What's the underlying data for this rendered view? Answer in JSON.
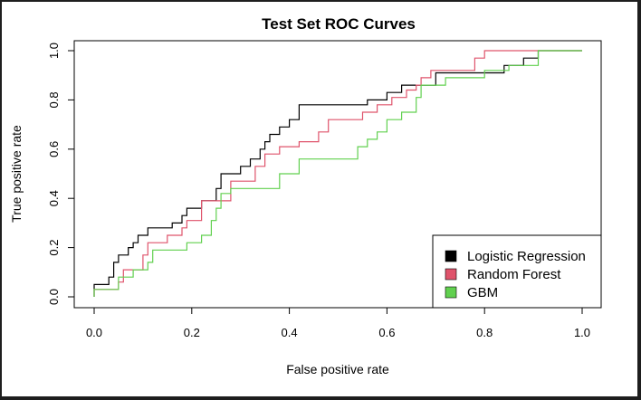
{
  "chart_data": {
    "type": "line",
    "title": "Test Set ROC Curves",
    "xlabel": "False positive rate",
    "ylabel": "True positive rate",
    "xlim": [
      0,
      1
    ],
    "ylim": [
      0,
      1
    ],
    "xticks": [
      "0.0",
      "0.2",
      "0.4",
      "0.6",
      "0.8",
      "1.0"
    ],
    "yticks": [
      "0.0",
      "0.2",
      "0.4",
      "0.6",
      "0.8",
      "1.0"
    ],
    "grid": false,
    "legend_position": "bottom-right",
    "series": [
      {
        "name": "Logistic Regression",
        "color": "#000000",
        "points": [
          [
            0,
            0
          ],
          [
            0,
            0.05
          ],
          [
            0.03,
            0.05
          ],
          [
            0.03,
            0.08
          ],
          [
            0.04,
            0.08
          ],
          [
            0.04,
            0.14
          ],
          [
            0.05,
            0.14
          ],
          [
            0.05,
            0.17
          ],
          [
            0.07,
            0.17
          ],
          [
            0.07,
            0.2
          ],
          [
            0.08,
            0.2
          ],
          [
            0.08,
            0.22
          ],
          [
            0.09,
            0.22
          ],
          [
            0.09,
            0.25
          ],
          [
            0.11,
            0.25
          ],
          [
            0.11,
            0.28
          ],
          [
            0.16,
            0.28
          ],
          [
            0.16,
            0.3
          ],
          [
            0.18,
            0.3
          ],
          [
            0.18,
            0.33
          ],
          [
            0.19,
            0.33
          ],
          [
            0.19,
            0.36
          ],
          [
            0.22,
            0.36
          ],
          [
            0.22,
            0.39
          ],
          [
            0.25,
            0.39
          ],
          [
            0.25,
            0.44
          ],
          [
            0.26,
            0.44
          ],
          [
            0.26,
            0.5
          ],
          [
            0.3,
            0.5
          ],
          [
            0.3,
            0.53
          ],
          [
            0.32,
            0.53
          ],
          [
            0.32,
            0.56
          ],
          [
            0.34,
            0.56
          ],
          [
            0.34,
            0.6
          ],
          [
            0.35,
            0.6
          ],
          [
            0.35,
            0.63
          ],
          [
            0.36,
            0.63
          ],
          [
            0.36,
            0.66
          ],
          [
            0.38,
            0.66
          ],
          [
            0.38,
            0.69
          ],
          [
            0.4,
            0.69
          ],
          [
            0.4,
            0.72
          ],
          [
            0.42,
            0.72
          ],
          [
            0.42,
            0.78
          ],
          [
            0.56,
            0.78
          ],
          [
            0.56,
            0.8
          ],
          [
            0.6,
            0.8
          ],
          [
            0.6,
            0.83
          ],
          [
            0.63,
            0.83
          ],
          [
            0.63,
            0.86
          ],
          [
            0.7,
            0.86
          ],
          [
            0.7,
            0.91
          ],
          [
            0.84,
            0.91
          ],
          [
            0.84,
            0.94
          ],
          [
            0.88,
            0.94
          ],
          [
            0.88,
            0.97
          ],
          [
            0.91,
            0.97
          ],
          [
            0.91,
            1
          ],
          [
            1,
            1
          ]
        ]
      },
      {
        "name": "Random Forest",
        "color": "#df536b",
        "points": [
          [
            0,
            0
          ],
          [
            0,
            0.03
          ],
          [
            0.05,
            0.03
          ],
          [
            0.05,
            0.06
          ],
          [
            0.06,
            0.06
          ],
          [
            0.06,
            0.11
          ],
          [
            0.1,
            0.11
          ],
          [
            0.1,
            0.17
          ],
          [
            0.11,
            0.17
          ],
          [
            0.11,
            0.22
          ],
          [
            0.15,
            0.22
          ],
          [
            0.15,
            0.25
          ],
          [
            0.18,
            0.25
          ],
          [
            0.18,
            0.28
          ],
          [
            0.19,
            0.28
          ],
          [
            0.19,
            0.31
          ],
          [
            0.22,
            0.31
          ],
          [
            0.22,
            0.39
          ],
          [
            0.28,
            0.39
          ],
          [
            0.28,
            0.47
          ],
          [
            0.33,
            0.47
          ],
          [
            0.33,
            0.53
          ],
          [
            0.35,
            0.53
          ],
          [
            0.35,
            0.58
          ],
          [
            0.38,
            0.58
          ],
          [
            0.38,
            0.61
          ],
          [
            0.42,
            0.61
          ],
          [
            0.42,
            0.63
          ],
          [
            0.46,
            0.63
          ],
          [
            0.46,
            0.67
          ],
          [
            0.48,
            0.67
          ],
          [
            0.48,
            0.72
          ],
          [
            0.55,
            0.72
          ],
          [
            0.55,
            0.75
          ],
          [
            0.58,
            0.75
          ],
          [
            0.58,
            0.78
          ],
          [
            0.61,
            0.78
          ],
          [
            0.61,
            0.81
          ],
          [
            0.64,
            0.81
          ],
          [
            0.64,
            0.84
          ],
          [
            0.66,
            0.84
          ],
          [
            0.66,
            0.86
          ],
          [
            0.67,
            0.86
          ],
          [
            0.67,
            0.89
          ],
          [
            0.69,
            0.89
          ],
          [
            0.69,
            0.92
          ],
          [
            0.78,
            0.92
          ],
          [
            0.78,
            0.97
          ],
          [
            0.8,
            0.97
          ],
          [
            0.8,
            1
          ],
          [
            1,
            1
          ]
        ]
      },
      {
        "name": "GBM",
        "color": "#61d04f",
        "points": [
          [
            0,
            0
          ],
          [
            0,
            0.03
          ],
          [
            0.05,
            0.03
          ],
          [
            0.05,
            0.08
          ],
          [
            0.08,
            0.08
          ],
          [
            0.08,
            0.11
          ],
          [
            0.11,
            0.11
          ],
          [
            0.11,
            0.14
          ],
          [
            0.12,
            0.14
          ],
          [
            0.12,
            0.19
          ],
          [
            0.19,
            0.19
          ],
          [
            0.19,
            0.22
          ],
          [
            0.22,
            0.22
          ],
          [
            0.22,
            0.25
          ],
          [
            0.24,
            0.25
          ],
          [
            0.24,
            0.31
          ],
          [
            0.25,
            0.31
          ],
          [
            0.25,
            0.36
          ],
          [
            0.26,
            0.36
          ],
          [
            0.26,
            0.42
          ],
          [
            0.28,
            0.42
          ],
          [
            0.28,
            0.44
          ],
          [
            0.38,
            0.44
          ],
          [
            0.38,
            0.5
          ],
          [
            0.42,
            0.5
          ],
          [
            0.42,
            0.56
          ],
          [
            0.54,
            0.56
          ],
          [
            0.54,
            0.61
          ],
          [
            0.56,
            0.61
          ],
          [
            0.56,
            0.64
          ],
          [
            0.58,
            0.64
          ],
          [
            0.58,
            0.67
          ],
          [
            0.6,
            0.67
          ],
          [
            0.6,
            0.72
          ],
          [
            0.63,
            0.72
          ],
          [
            0.63,
            0.75
          ],
          [
            0.66,
            0.75
          ],
          [
            0.66,
            0.81
          ],
          [
            0.67,
            0.81
          ],
          [
            0.67,
            0.86
          ],
          [
            0.72,
            0.86
          ],
          [
            0.72,
            0.89
          ],
          [
            0.8,
            0.89
          ],
          [
            0.8,
            0.92
          ],
          [
            0.85,
            0.92
          ],
          [
            0.85,
            0.94
          ],
          [
            0.91,
            0.94
          ],
          [
            0.91,
            1
          ],
          [
            1,
            1
          ]
        ]
      }
    ]
  }
}
